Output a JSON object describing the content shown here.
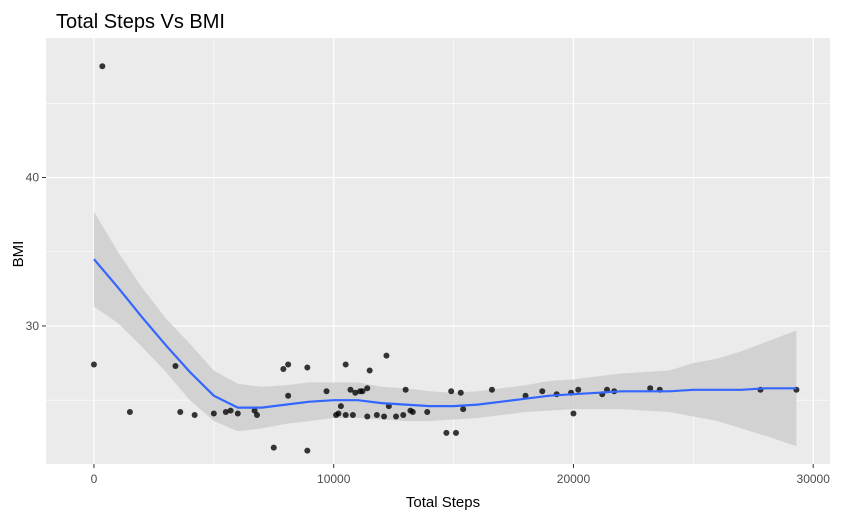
{
  "chart_data": {
    "type": "scatter",
    "title": "Total Steps Vs BMI",
    "xlabel": "Total Steps",
    "ylabel": "BMI",
    "xlim": [
      -2000,
      30700
    ],
    "ylim": [
      20.7,
      49.4
    ],
    "x_ticks": [
      0,
      10000,
      20000,
      30000
    ],
    "x_tick_labels": [
      "0",
      "10000",
      "20000",
      "30000"
    ],
    "y_ticks": [
      30,
      40
    ],
    "y_tick_labels": [
      "30",
      "40"
    ],
    "x_minor": [
      5000,
      15000,
      25000
    ],
    "y_minor": [
      25,
      35,
      45
    ],
    "grid": true,
    "theme": {
      "panel_bg": "#ebebeb",
      "grid_major": "#ffffff",
      "point_color": "#000000",
      "smooth_line": "#3366ff",
      "ribbon": "#cccccc"
    },
    "points": [
      {
        "x": 0,
        "y": 27.4
      },
      {
        "x": 350,
        "y": 47.5
      },
      {
        "x": 1500,
        "y": 24.2
      },
      {
        "x": 3400,
        "y": 27.3
      },
      {
        "x": 3600,
        "y": 24.2
      },
      {
        "x": 4200,
        "y": 24.0
      },
      {
        "x": 5000,
        "y": 24.1
      },
      {
        "x": 5500,
        "y": 24.2
      },
      {
        "x": 5700,
        "y": 24.3
      },
      {
        "x": 6000,
        "y": 24.1
      },
      {
        "x": 6700,
        "y": 24.3
      },
      {
        "x": 6800,
        "y": 24.0
      },
      {
        "x": 7500,
        "y": 21.8
      },
      {
        "x": 7900,
        "y": 27.1
      },
      {
        "x": 8100,
        "y": 27.4
      },
      {
        "x": 8100,
        "y": 25.3
      },
      {
        "x": 8900,
        "y": 21.6
      },
      {
        "x": 8900,
        "y": 27.2
      },
      {
        "x": 9700,
        "y": 25.6
      },
      {
        "x": 10100,
        "y": 24.0
      },
      {
        "x": 10200,
        "y": 24.1
      },
      {
        "x": 10300,
        "y": 24.6
      },
      {
        "x": 10500,
        "y": 27.4
      },
      {
        "x": 10500,
        "y": 24.0
      },
      {
        "x": 10700,
        "y": 25.7
      },
      {
        "x": 10800,
        "y": 24.0
      },
      {
        "x": 10900,
        "y": 25.5
      },
      {
        "x": 11100,
        "y": 25.6
      },
      {
        "x": 11200,
        "y": 25.6
      },
      {
        "x": 11400,
        "y": 25.8
      },
      {
        "x": 11400,
        "y": 23.9
      },
      {
        "x": 11500,
        "y": 27.0
      },
      {
        "x": 11800,
        "y": 24.0
      },
      {
        "x": 12100,
        "y": 23.9
      },
      {
        "x": 12200,
        "y": 28.0
      },
      {
        "x": 12300,
        "y": 24.6
      },
      {
        "x": 12600,
        "y": 23.9
      },
      {
        "x": 12900,
        "y": 24.0
      },
      {
        "x": 13000,
        "y": 25.7
      },
      {
        "x": 13200,
        "y": 24.3
      },
      {
        "x": 13300,
        "y": 24.2
      },
      {
        "x": 13900,
        "y": 24.2
      },
      {
        "x": 14700,
        "y": 22.8
      },
      {
        "x": 14900,
        "y": 25.6
      },
      {
        "x": 15100,
        "y": 22.8
      },
      {
        "x": 15300,
        "y": 25.5
      },
      {
        "x": 15400,
        "y": 24.4
      },
      {
        "x": 16600,
        "y": 25.7
      },
      {
        "x": 18000,
        "y": 25.3
      },
      {
        "x": 18700,
        "y": 25.6
      },
      {
        "x": 19300,
        "y": 25.4
      },
      {
        "x": 19900,
        "y": 25.5
      },
      {
        "x": 20000,
        "y": 24.1
      },
      {
        "x": 20200,
        "y": 25.7
      },
      {
        "x": 21200,
        "y": 25.4
      },
      {
        "x": 21400,
        "y": 25.7
      },
      {
        "x": 21700,
        "y": 25.6
      },
      {
        "x": 23200,
        "y": 25.8
      },
      {
        "x": 23600,
        "y": 25.7
      },
      {
        "x": 27800,
        "y": 25.7
      },
      {
        "x": 29300,
        "y": 25.7
      }
    ],
    "smooth": {
      "x": [
        0,
        1000,
        2000,
        3000,
        4000,
        5000,
        6000,
        7000,
        8000,
        9000,
        10000,
        11000,
        12000,
        13000,
        14000,
        15000,
        16000,
        17000,
        18000,
        19000,
        20000,
        21000,
        22000,
        23000,
        24000,
        25000,
        26000,
        27000,
        28000,
        29300
      ],
      "y": [
        34.5,
        32.6,
        30.6,
        28.7,
        26.9,
        25.3,
        24.5,
        24.5,
        24.7,
        24.9,
        25.0,
        25.0,
        24.8,
        24.7,
        24.6,
        24.6,
        24.7,
        24.9,
        25.1,
        25.3,
        25.4,
        25.5,
        25.6,
        25.6,
        25.6,
        25.7,
        25.7,
        25.7,
        25.8,
        25.8
      ],
      "lower": [
        31.3,
        30.2,
        28.6,
        26.9,
        25.0,
        23.6,
        22.9,
        23.1,
        23.4,
        23.6,
        23.8,
        23.8,
        23.7,
        23.6,
        23.6,
        23.7,
        23.8,
        24.0,
        24.2,
        24.3,
        24.4,
        24.4,
        24.4,
        24.3,
        24.2,
        23.9,
        23.6,
        23.1,
        22.6,
        21.9
      ],
      "upper": [
        37.7,
        35.0,
        32.6,
        30.5,
        28.8,
        27.0,
        26.1,
        25.9,
        26.0,
        26.2,
        26.2,
        26.2,
        25.9,
        25.8,
        25.6,
        25.5,
        25.6,
        25.8,
        26.0,
        26.3,
        26.4,
        26.6,
        26.8,
        26.9,
        27.0,
        27.5,
        27.8,
        28.3,
        28.9,
        29.7
      ]
    }
  }
}
